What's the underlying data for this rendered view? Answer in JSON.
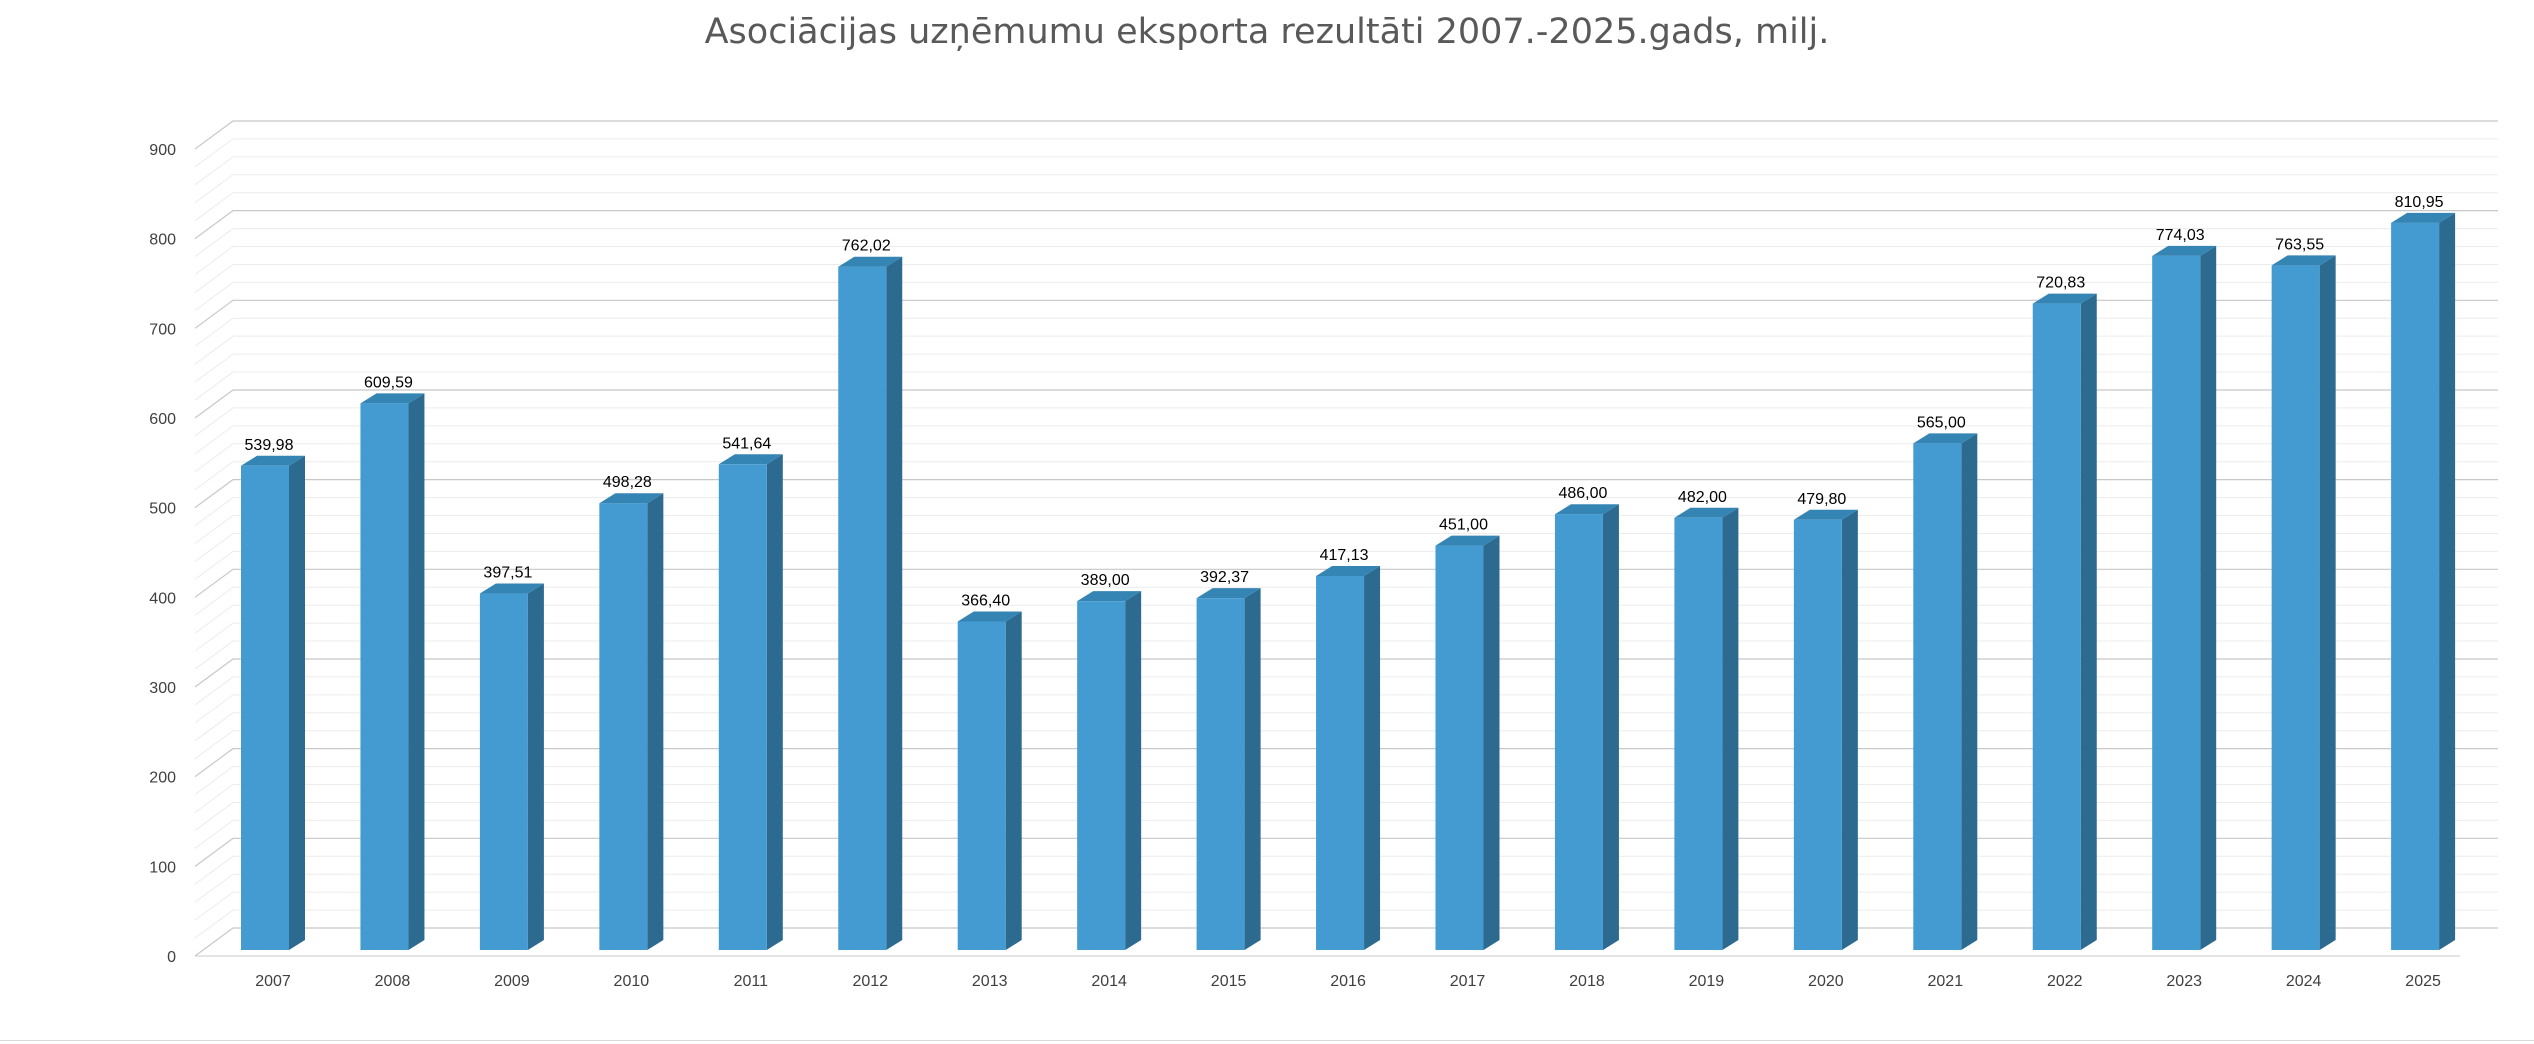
{
  "chart_data": {
    "type": "bar",
    "title": "Asociācijas uzņēmumu eksporta rezultāti 2007.-2025.gads, milj.",
    "xlabel": "",
    "ylabel": "",
    "categories": [
      "2007",
      "2008",
      "2009",
      "2010",
      "2011",
      "2012",
      "2013",
      "2014",
      "2015",
      "2016",
      "2017",
      "2018",
      "2019",
      "2020",
      "2021",
      "2022",
      "2023",
      "2024",
      "2025"
    ],
    "values": [
      539.98,
      609.59,
      397.51,
      498.28,
      541.64,
      762.02,
      366.4,
      389.0,
      392.37,
      417.13,
      451.0,
      486.0,
      482.0,
      479.8,
      565.0,
      720.83,
      774.03,
      763.55,
      810.95
    ],
    "data_labels": [
      "539,98",
      "609,59",
      "397,51",
      "498,28",
      "541,64",
      "762,02",
      "366,40",
      "389,00",
      "392,37",
      "417,13",
      "451,00",
      "486,00",
      "482,00",
      "479,80",
      "565,00",
      "720,83",
      "774,03",
      "763,55",
      "810,95"
    ],
    "y_ticks": [
      "0",
      "100",
      "200",
      "300",
      "400",
      "500",
      "600",
      "700",
      "800",
      "900"
    ],
    "ylim": [
      0,
      900
    ],
    "grid": true,
    "legend": "none",
    "style": "3d-column",
    "colors": {
      "bar_front": "#439bd2",
      "bar_side": "#2d6a90",
      "bar_top": "#3585b4",
      "grid_major": "#c8c8c8",
      "grid_minor": "#ececec",
      "title": "#595959"
    }
  }
}
